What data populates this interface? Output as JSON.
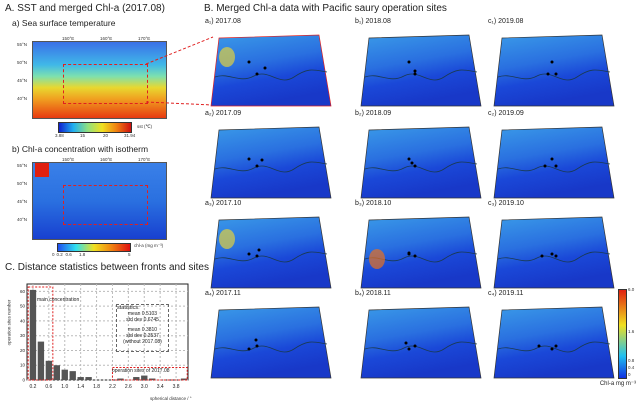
{
  "panelA": {
    "title": "A. SST and merged Chl-a (2017.08)",
    "sst_title": "a) Sea surface temperature",
    "chl_title": "b) Chl-a concentration with isotherm",
    "lon_labels": [
      "150°E",
      "160°E",
      "170°E"
    ],
    "lat_labels": [
      "55°N",
      "50°N",
      "45°N",
      "40°N"
    ],
    "sst_cbar": {
      "ticks": [
        "3.88",
        "15",
        "20",
        "31.94"
      ],
      "label": "sst (℃)"
    },
    "chl_cbar": {
      "ticks": [
        "0",
        "0.2",
        "0.6",
        "1.8",
        "5"
      ],
      "label": "chl-a (mg m⁻³)"
    }
  },
  "panelB": {
    "title": "B. Merged Chl-a data with Pacific saury operation sites",
    "maps": [
      {
        "label": "a₁) 2017.08"
      },
      {
        "label": "b₁) 2018.08"
      },
      {
        "label": "c₁) 2019.08"
      },
      {
        "label": "a₂) 2017.09"
      },
      {
        "label": "b₂) 2018.09"
      },
      {
        "label": "c₂) 2019.09"
      },
      {
        "label": "a₃) 2017.10"
      },
      {
        "label": "b₃) 2018.10"
      },
      {
        "label": "c₃) 2019.10"
      },
      {
        "label": "a₄) 2017.11"
      },
      {
        "label": "b₄) 2018.11"
      },
      {
        "label": "c₄) 2019.11"
      }
    ],
    "cbar": {
      "ticks": [
        "6.0",
        "1.6",
        "0.8",
        "0.4",
        "0"
      ],
      "label": "Chl-a mg m⁻³",
      "colors": [
        "#1030e0",
        "#20c0f0",
        "#f0e020",
        "#e02010"
      ]
    }
  },
  "chart_data": {
    "type": "bar",
    "title": "C. Distance statistics between fronts and sites",
    "xlabel": "spherical distance / °",
    "ylabel": "operation sites number",
    "x": [
      0.2,
      0.4,
      0.6,
      0.8,
      1.0,
      1.2,
      1.4,
      1.6,
      1.8,
      2.0,
      2.2,
      2.4,
      2.6,
      2.8,
      3.0,
      3.2,
      3.4,
      3.6,
      3.8,
      4.0
    ],
    "values": [
      61,
      26,
      13,
      10,
      7,
      6,
      2,
      2,
      0,
      0,
      0,
      1,
      0,
      2,
      3,
      1,
      0,
      0,
      0,
      1
    ],
    "xticks": [
      "0.2",
      "0.6",
      "1.0",
      "1.4",
      "1.8",
      "2.2",
      "2.6",
      "3.0",
      "3.4",
      "3.8"
    ],
    "yticks": [
      "0",
      "10",
      "20",
      "30",
      "40",
      "50",
      "60"
    ],
    "ylim": [
      0,
      65
    ],
    "grid": true,
    "bar_color": "#555555",
    "annotations": {
      "main": "main concentration",
      "sites2017": "operation sites of 2017.08",
      "stats_title": "statistics:",
      "mean1": "mean 0.5103",
      "std1": "std dev 0.6745",
      "mean2": "mean 0.3810",
      "std2": "std dev 0.3537",
      "note": "(without 2017.08)"
    }
  }
}
